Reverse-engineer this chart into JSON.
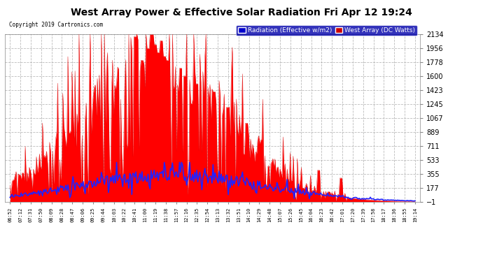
{
  "title": "West Array Power & Effective Solar Radiation Fri Apr 12 19:24",
  "copyright": "Copyright 2019 Cartronics.com",
  "legend_radiation": "Radiation (Effective w/m2)",
  "legend_west": "West Array (DC Watts)",
  "legend_radiation_bg": "#0000cc",
  "legend_west_bg": "#cc0000",
  "background_color": "#ffffff",
  "plot_bg_color": "#ffffff",
  "title_color": "#000000",
  "grid_color": "#aaaaaa",
  "yticks": [
    -1.1,
    176.9,
    354.8,
    532.8,
    710.8,
    888.7,
    1066.7,
    1244.6,
    1422.6,
    1600.5,
    1778.5,
    1956.5,
    2134.4
  ],
  "xtick_labels": [
    "06:52",
    "07:12",
    "07:31",
    "07:50",
    "08:09",
    "08:28",
    "08:47",
    "09:06",
    "09:25",
    "09:44",
    "10:03",
    "10:22",
    "10:41",
    "11:00",
    "11:19",
    "11:38",
    "11:57",
    "12:16",
    "12:35",
    "12:54",
    "13:13",
    "13:32",
    "13:51",
    "14:10",
    "14:29",
    "14:48",
    "15:07",
    "15:26",
    "15:45",
    "16:04",
    "16:23",
    "16:42",
    "17:01",
    "17:20",
    "17:39",
    "17:58",
    "18:17",
    "18:36",
    "18:55",
    "19:14"
  ],
  "ylim": [
    -1.1,
    2134.4
  ],
  "figsize": [
    6.9,
    3.75
  ],
  "dpi": 100
}
